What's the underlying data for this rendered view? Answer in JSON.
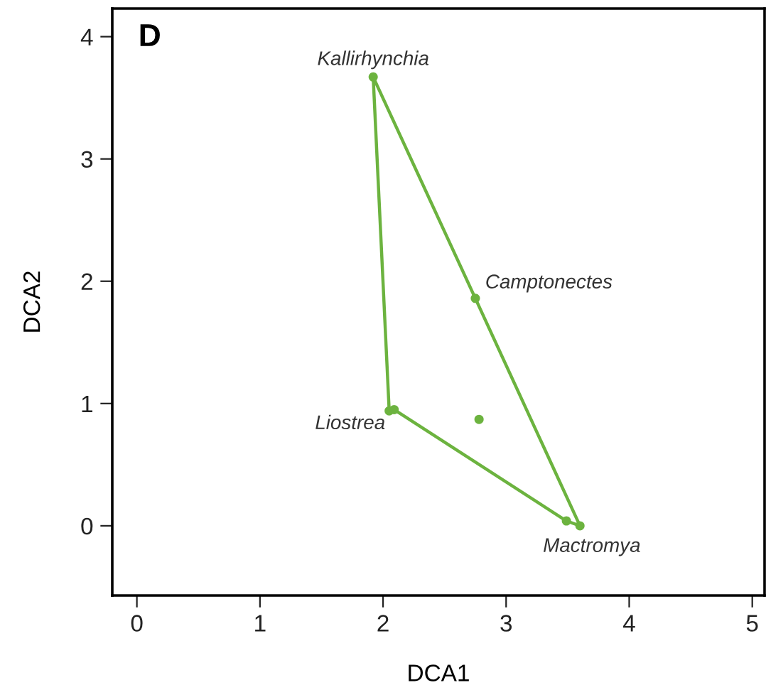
{
  "chart_data": {
    "type": "scatter",
    "title": "D",
    "xlabel": "DCA1",
    "ylabel": "DCA2",
    "xlim": [
      -0.2,
      5.1
    ],
    "ylim": [
      -0.57,
      4.23
    ],
    "xticks": [
      0,
      1,
      2,
      3,
      4,
      5
    ],
    "yticks": [
      0,
      1,
      2,
      3,
      4
    ],
    "grid": false,
    "marker": "circle",
    "series": [
      {
        "color": "#6cb33f",
        "x": [
          1.92,
          2.75,
          2.05,
          2.09,
          2.78,
          3.49,
          3.6
        ],
        "values": [
          3.67,
          1.86,
          0.94,
          0.95,
          0.87,
          0.04,
          0.0
        ]
      },
      {
        "type": "line",
        "color": "#6cb33f",
        "line_style": "solid",
        "marker": "none",
        "x": [
          1.92,
          2.75,
          3.6
        ],
        "values": [
          3.67,
          1.86,
          0.0
        ]
      },
      {
        "type": "line",
        "color": "#6cb33f",
        "line_style": "solid",
        "marker": "none",
        "x": [
          2.05,
          2.09,
          3.49,
          3.6
        ],
        "values": [
          0.94,
          0.95,
          0.04,
          0.0
        ]
      },
      {
        "type": "line",
        "color": "#6cb33f",
        "line_style": "solid",
        "marker": "none",
        "x": [
          1.92,
          2.05
        ],
        "values": [
          3.67,
          0.94
        ]
      }
    ],
    "annotations": [
      {
        "text": "Kallirhynchia",
        "x": 1.92,
        "y": 3.67
      },
      {
        "text": "Camptonectes",
        "x": 2.75,
        "y": 1.86
      },
      {
        "text": "Liostrea",
        "x": 2.05,
        "y": 0.94
      },
      {
        "text": "Mactromya",
        "x": 3.6,
        "y": 0.0
      }
    ]
  }
}
